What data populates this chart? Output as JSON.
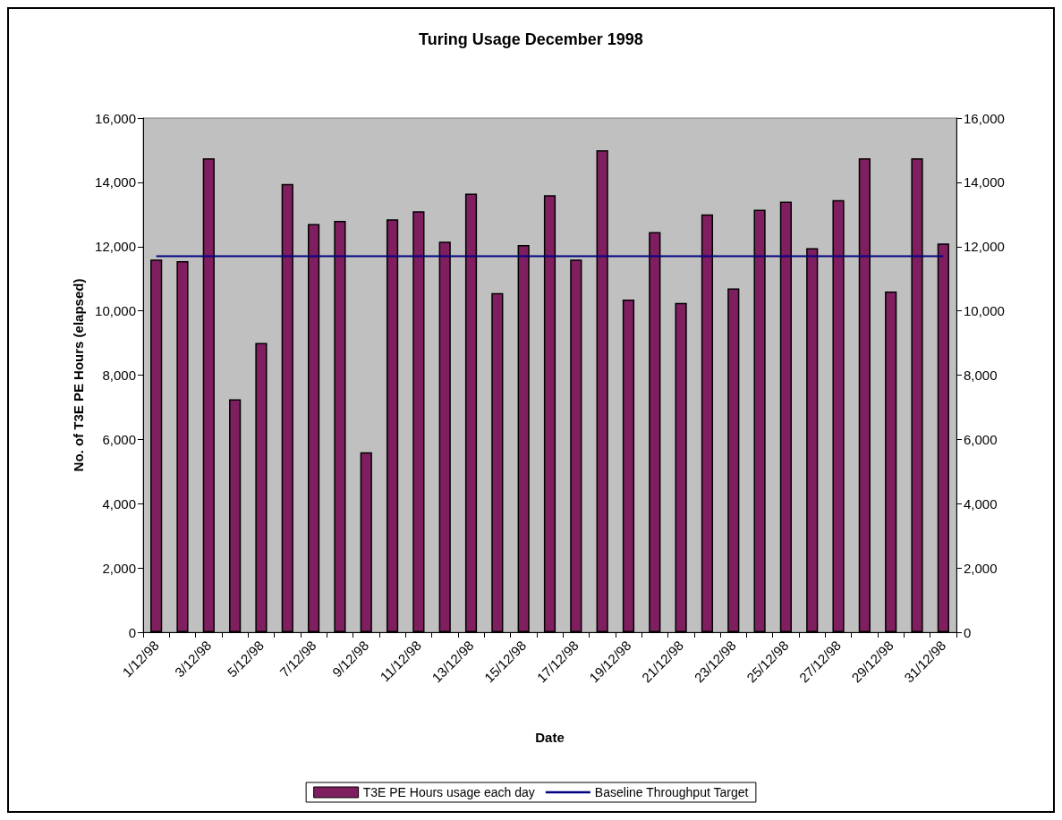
{
  "chart_data": {
    "type": "bar",
    "title": "Turing Usage December 1998",
    "xlabel": "Date",
    "ylabel": "No. of T3E PE Hours (elapsed)",
    "categories": [
      "1/12/98",
      null,
      "3/12/98",
      null,
      "5/12/98",
      null,
      "7/12/98",
      null,
      "9/12/98",
      null,
      "11/12/98",
      null,
      "13/12/98",
      null,
      "15/12/98",
      null,
      "17/12/98",
      null,
      "19/12/98",
      null,
      "21/12/98",
      null,
      "23/12/98",
      null,
      "25/12/98",
      null,
      "27/12/98",
      null,
      "29/12/98",
      null,
      "31/12/98"
    ],
    "series": [
      {
        "name": "T3E PE Hours usage each day",
        "color": "#7f1f5f",
        "values": [
          11600,
          11550,
          14750,
          7250,
          9000,
          13950,
          12700,
          12800,
          5600,
          12850,
          13100,
          12150,
          13650,
          10550,
          12050,
          13600,
          11600,
          15000,
          10350,
          12450,
          10250,
          13000,
          10700,
          13150,
          13400,
          11950,
          13450,
          14750,
          10600,
          14750,
          12100
        ]
      },
      {
        "type": "line",
        "name": "Baseline Throughput Target",
        "color": "#000080",
        "values": [
          11700,
          11700,
          11700,
          11700,
          11700,
          11700,
          11700,
          11700,
          11700,
          11700,
          11700,
          11700,
          11700,
          11700,
          11700,
          11700,
          11700,
          11700,
          11700,
          11700,
          11700,
          11700,
          11700,
          11700,
          11700,
          11700,
          11700,
          11700,
          11700,
          11700,
          11700
        ]
      }
    ],
    "ylim": [
      0,
      16000
    ],
    "yticks": [
      {
        "value": 0,
        "label": "0"
      },
      {
        "value": 2000,
        "label": "2,000"
      },
      {
        "value": 4000,
        "label": "4,000"
      },
      {
        "value": 6000,
        "label": "6,000"
      },
      {
        "value": 8000,
        "label": "8,000"
      },
      {
        "value": 10000,
        "label": "10,000"
      },
      {
        "value": 12000,
        "label": "12,000"
      },
      {
        "value": 14000,
        "label": "14,000"
      },
      {
        "value": 16000,
        "label": "16,000"
      }
    ],
    "y2lim": [
      0,
      16000
    ],
    "y2ticks": [
      {
        "value": 0,
        "label": "0"
      },
      {
        "value": 2000,
        "label": "2,000"
      },
      {
        "value": 4000,
        "label": "4,000"
      },
      {
        "value": 6000,
        "label": "6,000"
      },
      {
        "value": 8000,
        "label": "8,000"
      },
      {
        "value": 10000,
        "label": "10,000"
      },
      {
        "value": 12000,
        "label": "12,000"
      },
      {
        "value": 14000,
        "label": "14,000"
      },
      {
        "value": 16000,
        "label": "16,000"
      }
    ],
    "grid": false,
    "legend": "bottom"
  }
}
